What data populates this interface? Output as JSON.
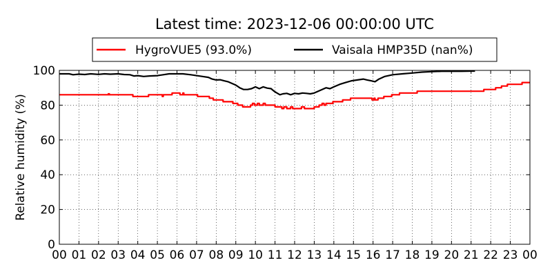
{
  "chart_data": {
    "type": "line",
    "title": "Latest time: 2023-12-06 00:00:00 UTC",
    "xlabel": "",
    "ylabel": "Relative humidity (%)",
    "xlim": [
      0,
      24
    ],
    "ylim": [
      0,
      100
    ],
    "x_tick_labels": [
      "00",
      "01",
      "02",
      "03",
      "04",
      "05",
      "06",
      "07",
      "08",
      "09",
      "10",
      "11",
      "12",
      "13",
      "14",
      "15",
      "16",
      "17",
      "18",
      "19",
      "20",
      "21",
      "22",
      "23",
      "00"
    ],
    "y_ticks": [
      0,
      20,
      40,
      60,
      80,
      100
    ],
    "grid": true,
    "legend_position": "top",
    "series": [
      {
        "name": "HygroVUE5 (93.0%)",
        "color": "#ff0000",
        "step": true,
        "points": [
          [
            0,
            86
          ],
          [
            2.45,
            86
          ],
          [
            2.5,
            86.5
          ],
          [
            2.55,
            86
          ],
          [
            3.7,
            86
          ],
          [
            3.75,
            85
          ],
          [
            4.5,
            85
          ],
          [
            4.55,
            86
          ],
          [
            5.2,
            86
          ],
          [
            5.25,
            85
          ],
          [
            5.3,
            86
          ],
          [
            5.7,
            86
          ],
          [
            5.75,
            87
          ],
          [
            6.1,
            87
          ],
          [
            6.15,
            86
          ],
          [
            6.3,
            87
          ],
          [
            6.35,
            86
          ],
          [
            7.0,
            86
          ],
          [
            7.05,
            85
          ],
          [
            7.6,
            85
          ],
          [
            7.65,
            84
          ],
          [
            7.8,
            84
          ],
          [
            7.85,
            83
          ],
          [
            8.3,
            83
          ],
          [
            8.35,
            82
          ],
          [
            8.8,
            82
          ],
          [
            8.85,
            81
          ],
          [
            9.05,
            81
          ],
          [
            9.1,
            80
          ],
          [
            9.3,
            80
          ],
          [
            9.35,
            79
          ],
          [
            9.7,
            79
          ],
          [
            9.75,
            80
          ],
          [
            9.85,
            81
          ],
          [
            9.95,
            80
          ],
          [
            10.1,
            81
          ],
          [
            10.2,
            80
          ],
          [
            10.4,
            81
          ],
          [
            10.5,
            80
          ],
          [
            10.95,
            80
          ],
          [
            11.0,
            79
          ],
          [
            11.3,
            79
          ],
          [
            11.35,
            78
          ],
          [
            11.45,
            79
          ],
          [
            11.6,
            78
          ],
          [
            11.8,
            79
          ],
          [
            11.9,
            78
          ],
          [
            12.3,
            78
          ],
          [
            12.35,
            79
          ],
          [
            12.5,
            78
          ],
          [
            12.95,
            78
          ],
          [
            13.0,
            79
          ],
          [
            13.2,
            79
          ],
          [
            13.25,
            80
          ],
          [
            13.4,
            81
          ],
          [
            13.5,
            80
          ],
          [
            13.6,
            81
          ],
          [
            13.9,
            81
          ],
          [
            13.95,
            82
          ],
          [
            14.4,
            82
          ],
          [
            14.45,
            83
          ],
          [
            14.8,
            83
          ],
          [
            14.85,
            84
          ],
          [
            15.9,
            84
          ],
          [
            15.95,
            83
          ],
          [
            16.05,
            84
          ],
          [
            16.1,
            83
          ],
          [
            16.25,
            84
          ],
          [
            16.5,
            84
          ],
          [
            16.55,
            85
          ],
          [
            16.9,
            85
          ],
          [
            16.95,
            86
          ],
          [
            17.3,
            86
          ],
          [
            17.35,
            87
          ],
          [
            18.2,
            87
          ],
          [
            18.25,
            88
          ],
          [
            21.6,
            88
          ],
          [
            21.65,
            89
          ],
          [
            22.2,
            89
          ],
          [
            22.25,
            90
          ],
          [
            22.5,
            90
          ],
          [
            22.55,
            91
          ],
          [
            22.8,
            91
          ],
          [
            22.85,
            92
          ],
          [
            23.55,
            92
          ],
          [
            23.6,
            93
          ],
          [
            24,
            93
          ]
        ]
      },
      {
        "name": "Vaisala HMP35D (nan%)",
        "color": "#000000",
        "step": false,
        "points": [
          [
            0,
            98
          ],
          [
            0.5,
            98
          ],
          [
            0.7,
            97.5
          ],
          [
            1.0,
            97.8
          ],
          [
            1.3,
            97.6
          ],
          [
            1.6,
            98
          ],
          [
            2.0,
            97.7
          ],
          [
            2.3,
            98
          ],
          [
            2.6,
            97.8
          ],
          [
            3.0,
            98
          ],
          [
            3.3,
            97.6
          ],
          [
            3.6,
            97.5
          ],
          [
            3.8,
            96.8
          ],
          [
            4.0,
            97
          ],
          [
            4.3,
            96.5
          ],
          [
            4.6,
            96.8
          ],
          [
            5.0,
            97
          ],
          [
            5.3,
            97.5
          ],
          [
            5.6,
            98
          ],
          [
            5.9,
            98
          ],
          [
            6.3,
            98
          ],
          [
            6.7,
            97.5
          ],
          [
            7.0,
            97
          ],
          [
            7.3,
            96.5
          ],
          [
            7.6,
            96
          ],
          [
            7.8,
            95
          ],
          [
            8.0,
            94.5
          ],
          [
            8.2,
            94.6
          ],
          [
            8.4,
            94
          ],
          [
            8.6,
            93.5
          ],
          [
            8.8,
            92.5
          ],
          [
            9.0,
            91.5
          ],
          [
            9.2,
            90
          ],
          [
            9.4,
            89
          ],
          [
            9.6,
            89
          ],
          [
            9.8,
            89.5
          ],
          [
            10.0,
            90.5
          ],
          [
            10.2,
            89.5
          ],
          [
            10.4,
            90.5
          ],
          [
            10.6,
            89.8
          ],
          [
            10.8,
            89.5
          ],
          [
            10.95,
            88
          ],
          [
            11.1,
            87
          ],
          [
            11.25,
            86
          ],
          [
            11.4,
            86.5
          ],
          [
            11.6,
            86.8
          ],
          [
            11.8,
            86
          ],
          [
            12.0,
            86.8
          ],
          [
            12.2,
            86.5
          ],
          [
            12.4,
            87
          ],
          [
            12.6,
            86.8
          ],
          [
            12.8,
            86.5
          ],
          [
            13.0,
            87
          ],
          [
            13.2,
            88
          ],
          [
            13.4,
            89
          ],
          [
            13.6,
            90
          ],
          [
            13.8,
            89.5
          ],
          [
            14.0,
            90.5
          ],
          [
            14.3,
            92
          ],
          [
            14.6,
            93
          ],
          [
            14.9,
            94
          ],
          [
            15.2,
            94.5
          ],
          [
            15.5,
            95
          ],
          [
            15.7,
            94.5
          ],
          [
            15.9,
            94
          ],
          [
            16.1,
            93.5
          ],
          [
            16.3,
            95
          ],
          [
            16.6,
            96.5
          ],
          [
            17.0,
            97.5
          ],
          [
            17.5,
            98
          ],
          [
            18.0,
            98.5
          ],
          [
            18.5,
            99
          ],
          [
            19.0,
            99.3
          ],
          [
            19.5,
            99.5
          ],
          [
            20.0,
            99.5
          ],
          [
            20.5,
            99.5
          ],
          [
            21.0,
            99.6
          ],
          [
            21.2,
            99.6
          ]
        ]
      }
    ]
  }
}
